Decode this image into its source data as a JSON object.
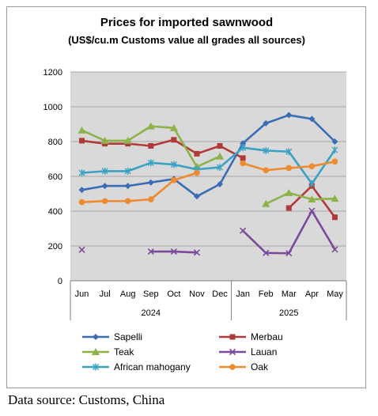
{
  "chart_data": {
    "type": "line",
    "title": "Prices for imported sawnwood",
    "subtitle": "(US$/cu.m Customs value all grades all sources)",
    "categories": [
      "Jun",
      "Jul",
      "Aug",
      "Sep",
      "Oct",
      "Nov",
      "Dec",
      "Jan",
      "Feb",
      "Mar",
      "Apr",
      "May"
    ],
    "groups": [
      {
        "label": "2024",
        "span": 7
      },
      {
        "label": "2025",
        "span": 5
      }
    ],
    "ylim": [
      0,
      1200
    ],
    "yticks": [
      0,
      200,
      400,
      600,
      800,
      1000,
      1200
    ],
    "grid": true,
    "legend_position": "bottom",
    "series": [
      {
        "name": "Sapelli",
        "color": "#3a6db5",
        "marker": "diamond",
        "values": [
          522,
          545,
          545,
          565,
          585,
          485,
          555,
          790,
          905,
          952,
          930,
          800
        ]
      },
      {
        "name": "Merbau",
        "color": "#b03a3a",
        "marker": "square",
        "values": [
          805,
          788,
          788,
          775,
          810,
          730,
          775,
          705,
          null,
          418,
          545,
          365
        ]
      },
      {
        "name": "Teak",
        "color": "#8db24a",
        "marker": "triangle",
        "values": [
          865,
          805,
          805,
          888,
          878,
          655,
          715,
          null,
          442,
          505,
          468,
          472
        ]
      },
      {
        "name": "Lauan",
        "color": "#7b4a9a",
        "marker": "x",
        "values": [
          178,
          null,
          null,
          168,
          168,
          162,
          null,
          288,
          160,
          158,
          402,
          180
        ]
      },
      {
        "name": "African mahogany",
        "color": "#3aa3c3",
        "marker": "asterisk",
        "values": [
          620,
          630,
          630,
          678,
          668,
          640,
          652,
          765,
          748,
          742,
          558,
          752
        ]
      },
      {
        "name": "Oak",
        "color": "#ee8a30",
        "marker": "circle",
        "values": [
          452,
          458,
          458,
          468,
          578,
          620,
          null,
          675,
          635,
          648,
          658,
          685
        ]
      }
    ]
  },
  "source": "Data source: Customs, China"
}
